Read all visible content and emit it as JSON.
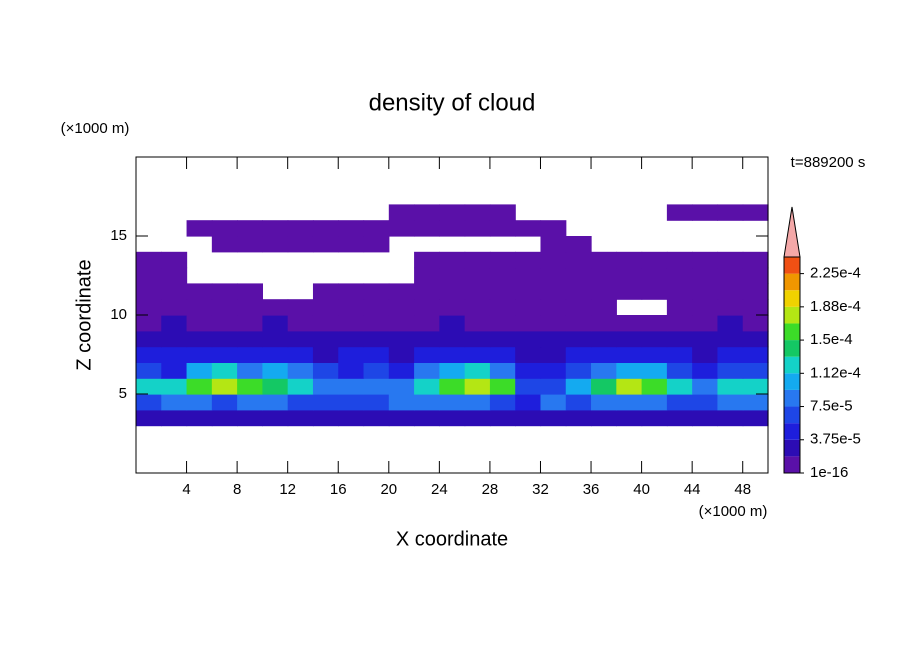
{
  "chart_data": {
    "type": "contour",
    "title": "density of cloud",
    "annotation": "t=889200 s",
    "x_label": "X coordinate",
    "y_label": "Z coordinate",
    "x_unit": "(×1000 m)",
    "y_unit": "(×1000 m)",
    "xlim": [
      0,
      50
    ],
    "ylim": [
      0,
      20
    ],
    "xticks": [
      4,
      8,
      12,
      16,
      20,
      24,
      28,
      32,
      36,
      40,
      44,
      48
    ],
    "yticks": [
      5,
      10,
      15
    ],
    "x": [
      1,
      3,
      5,
      7,
      9,
      11,
      13,
      15,
      17,
      19,
      21,
      23,
      25,
      27,
      29,
      31,
      33,
      35,
      37,
      39,
      41,
      43,
      45,
      47,
      49
    ],
    "y": [
      3.5,
      4.5,
      5.5,
      6.5,
      7.5,
      8.5,
      9.5,
      10.5,
      11.5,
      12.5,
      13.5,
      14.5,
      15.5,
      16.5
    ],
    "z": [
      [
        2e-05,
        2e-05,
        2e-05,
        2e-05,
        2e-05,
        2e-05,
        2e-05,
        2e-05,
        2e-05,
        2e-05,
        2e-05,
        2e-05,
        2e-05,
        2e-05,
        2e-05,
        2e-05,
        2e-05,
        2e-05,
        2e-05,
        2e-05,
        2e-05,
        2e-05,
        2e-05,
        2e-05,
        2e-05
      ],
      [
        6e-05,
        8e-05,
        8e-05,
        7e-05,
        8e-05,
        8e-05,
        7e-05,
        6e-05,
        6e-05,
        7e-05,
        8e-05,
        8e-05,
        8e-05,
        8e-05,
        7e-05,
        5e-05,
        8e-05,
        6e-05,
        8e-05,
        8e-05,
        8e-05,
        7e-05,
        7e-05,
        8e-05,
        8e-05
      ],
      [
        0.00013,
        0.00013,
        0.00015,
        0.00017,
        0.00016,
        0.00014,
        0.00013,
        9e-05,
        8e-05,
        8e-05,
        9e-05,
        0.00012,
        0.00015,
        0.00017,
        0.00015,
        7e-05,
        6e-05,
        0.0001,
        0.00014,
        0.00017,
        0.00016,
        0.00013,
        9e-05,
        0.00012,
        0.00013
      ],
      [
        6e-05,
        5e-05,
        0.0001,
        0.00012,
        9e-05,
        0.00011,
        8e-05,
        6e-05,
        5e-05,
        6e-05,
        5e-05,
        8e-05,
        0.00011,
        0.00012,
        9e-05,
        5e-05,
        4e-05,
        6e-05,
        9e-05,
        0.00011,
        0.0001,
        7e-05,
        5e-05,
        6e-05,
        7e-05
      ],
      [
        4e-05,
        4e-05,
        5e-05,
        5e-05,
        4e-05,
        5e-05,
        4e-05,
        3e-05,
        4e-05,
        4e-05,
        3e-05,
        4e-05,
        5e-05,
        5e-05,
        4e-05,
        3e-05,
        3e-05,
        4e-05,
        4e-05,
        5e-05,
        5e-05,
        4e-05,
        3e-05,
        4e-05,
        5e-05
      ],
      [
        2.5e-05,
        3e-05,
        2.5e-05,
        3e-05,
        2.5e-05,
        3e-05,
        2.5e-05,
        2e-05,
        2.5e-05,
        2e-05,
        2e-05,
        2.5e-05,
        3e-05,
        2.5e-05,
        2.5e-05,
        2e-05,
        2e-05,
        2.5e-05,
        2.5e-05,
        3e-05,
        2.5e-05,
        2.5e-05,
        2e-05,
        2.5e-05,
        3e-05
      ],
      [
        1.5e-05,
        2e-05,
        1.5e-05,
        1.5e-05,
        1.5e-05,
        2e-05,
        1.5e-05,
        1.5e-05,
        1.5e-05,
        1.5e-05,
        1.5e-05,
        1.5e-05,
        2e-05,
        1.5e-05,
        1.5e-05,
        1.5e-05,
        1.5e-05,
        1.5e-05,
        1.5e-05,
        1.5e-05,
        1.5e-05,
        1.5e-05,
        1.5e-05,
        2e-05,
        1.5e-05
      ],
      [
        1e-05,
        1e-05,
        1e-05,
        1e-05,
        1e-05,
        1e-05,
        1e-05,
        1e-05,
        1e-05,
        1e-05,
        1e-05,
        1e-05,
        1e-05,
        1e-05,
        1e-05,
        1e-05,
        1e-05,
        1e-05,
        1e-05,
        null,
        null,
        1e-05,
        1e-05,
        1e-05,
        1e-05
      ],
      [
        1e-05,
        1e-05,
        1e-05,
        1e-05,
        1e-05,
        null,
        null,
        1e-05,
        1e-05,
        1e-05,
        1e-05,
        1e-05,
        1e-05,
        1e-05,
        1e-05,
        1e-05,
        1e-05,
        1e-05,
        1e-05,
        1e-05,
        1e-05,
        1e-05,
        1e-05,
        1e-05,
        1e-05
      ],
      [
        1e-05,
        1e-05,
        null,
        null,
        null,
        null,
        null,
        null,
        null,
        null,
        null,
        1e-05,
        1e-05,
        1e-05,
        1e-05,
        1e-05,
        1e-05,
        1e-05,
        1e-05,
        1e-05,
        1e-05,
        1e-05,
        1e-05,
        1e-05,
        1e-05
      ],
      [
        1e-05,
        1e-05,
        null,
        null,
        null,
        null,
        null,
        null,
        null,
        null,
        null,
        1e-05,
        1e-05,
        1e-05,
        1e-05,
        1e-05,
        1e-05,
        1e-05,
        1e-05,
        1e-05,
        1e-05,
        1e-05,
        1e-05,
        1e-05,
        1e-05
      ],
      [
        null,
        null,
        null,
        1e-05,
        1e-05,
        1e-05,
        1e-05,
        1e-05,
        1e-05,
        1e-05,
        null,
        null,
        null,
        null,
        null,
        null,
        1e-05,
        1e-05,
        null,
        null,
        null,
        null,
        null,
        null,
        null
      ],
      [
        null,
        null,
        1e-05,
        1e-05,
        1e-05,
        1e-05,
        1e-05,
        1e-05,
        1e-05,
        1e-05,
        1e-05,
        1e-05,
        1e-05,
        1e-05,
        1e-05,
        1e-05,
        1e-05,
        null,
        null,
        null,
        null,
        null,
        null,
        null,
        null
      ],
      [
        null,
        null,
        null,
        null,
        null,
        null,
        null,
        null,
        null,
        null,
        1e-05,
        1e-05,
        1e-05,
        1e-05,
        1e-05,
        null,
        null,
        null,
        null,
        null,
        null,
        1e-05,
        1e-05,
        1e-05,
        1e-05
      ]
    ],
    "colorbar": {
      "levels": [
        1e-16,
        1.875e-05,
        3.75e-05,
        5.625e-05,
        7.5e-05,
        9.375e-05,
        0.0001125,
        0.00013125,
        0.00015,
        0.00016875,
        0.0001875,
        0.00020625,
        0.000225,
        0.00024375
      ],
      "colors": [
        "#5a10a8",
        "#2c0cb4",
        "#1e1edc",
        "#1e46e6",
        "#2878f0",
        "#14aaf0",
        "#14d2c8",
        "#14c864",
        "#3cdc28",
        "#b4e614",
        "#f0d200",
        "#f09600",
        "#f05014"
      ],
      "over_color": "#f4a8a8",
      "ticks": [
        {
          "value": 1e-16,
          "label": "1e-16"
        },
        {
          "value": 3.75e-05,
          "label": "3.75e-5"
        },
        {
          "value": 7.5e-05,
          "label": "7.5e-5"
        },
        {
          "value": 0.0001125,
          "label": "1.12e-4"
        },
        {
          "value": 0.00015,
          "label": "1.5e-4"
        },
        {
          "value": 0.0001875,
          "label": "1.88e-4"
        },
        {
          "value": 0.000225,
          "label": "2.25e-4"
        }
      ]
    }
  }
}
